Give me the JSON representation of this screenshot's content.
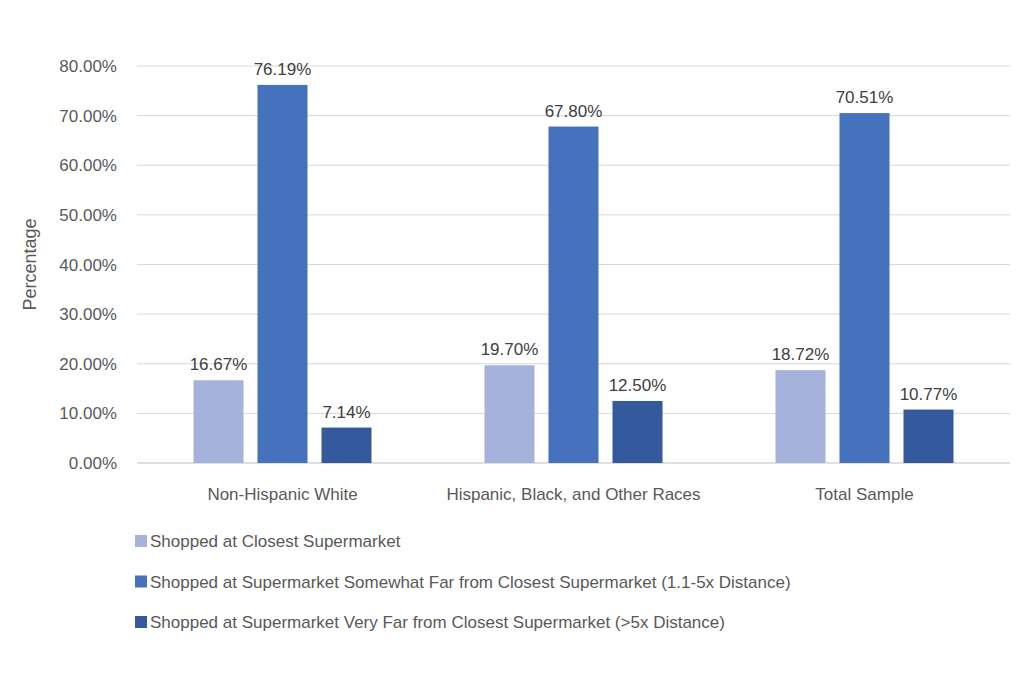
{
  "chart_data": {
    "type": "bar",
    "y_label": "Percentage",
    "categories": [
      "Non-Hispanic White",
      "Hispanic, Black, and Other Races",
      "Total Sample"
    ],
    "series": [
      {
        "name": "Shopped at Closest Supermarket",
        "color": "#a5b3dc",
        "values": [
          16.67,
          19.7,
          18.72
        ],
        "value_labels": [
          "16.67%",
          "19.70%",
          "18.72%"
        ]
      },
      {
        "name": "Shopped at Supermarket Somewhat Far from Closest Supermarket (1.1-5x Distance)",
        "color": "#4671bd",
        "values": [
          76.19,
          67.8,
          70.51
        ],
        "value_labels": [
          "76.19%",
          "67.80%",
          "70.51%"
        ]
      },
      {
        "name": "Shopped at Supermarket Very Far from Closest Supermarket (>5x Distance)",
        "color": "#345a9d",
        "values": [
          7.14,
          12.5,
          10.77
        ],
        "value_labels": [
          "7.14%",
          "12.50%",
          "10.77%"
        ]
      }
    ],
    "ylim": [
      0,
      80
    ],
    "yticks": [
      {
        "value": 0,
        "label": "0.00%"
      },
      {
        "value": 10,
        "label": "10.00%"
      },
      {
        "value": 20,
        "label": "20.00%"
      },
      {
        "value": 30,
        "label": "30.00%"
      },
      {
        "value": 40,
        "label": "40.00%"
      },
      {
        "value": 50,
        "label": "50.00%"
      },
      {
        "value": 60,
        "label": "60.00%"
      },
      {
        "value": 70,
        "label": "70.00%"
      },
      {
        "value": 80,
        "label": "80.00%"
      }
    ],
    "grid": true,
    "data_labels": true,
    "legend": "bottom"
  }
}
